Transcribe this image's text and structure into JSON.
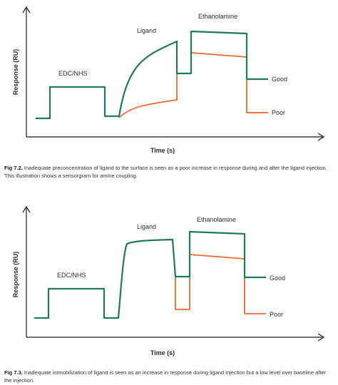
{
  "figures": [
    {
      "labels": {
        "edc": "EDC/NHS",
        "ligand": "Ligand",
        "ethanolamine": "Ethanolamine",
        "good": "Good",
        "poor": "Poor",
        "ylabel": "Response (RU)",
        "xlabel": "Time (s)"
      },
      "caption": {
        "figno": "Fig 7.2.",
        "text": " Inadequate preconcentration of ligand to the surface is seen as a poor increase in response during and after the ligand injection. This illustration shows a sensorgram for amine coupling."
      },
      "colors": {
        "good": "#1f7a5c",
        "poor": "#ee6a2a"
      }
    },
    {
      "labels": {
        "edc": "EDC/NHS",
        "ligand": "Ligand",
        "ethanolamine": "Ethanolamine",
        "good": "Good",
        "poor": "Poor",
        "ylabel": "Response (RU)",
        "xlabel": "Time (s)"
      },
      "caption": {
        "figno": "Fig 7.3.",
        "text": " Inadequate immobilization of ligand is seen as an increase in response during ligand injection but a low level over baseline after the injection."
      },
      "colors": {
        "good": "#1f7a5c",
        "poor": "#ee6a2a"
      }
    }
  ]
}
